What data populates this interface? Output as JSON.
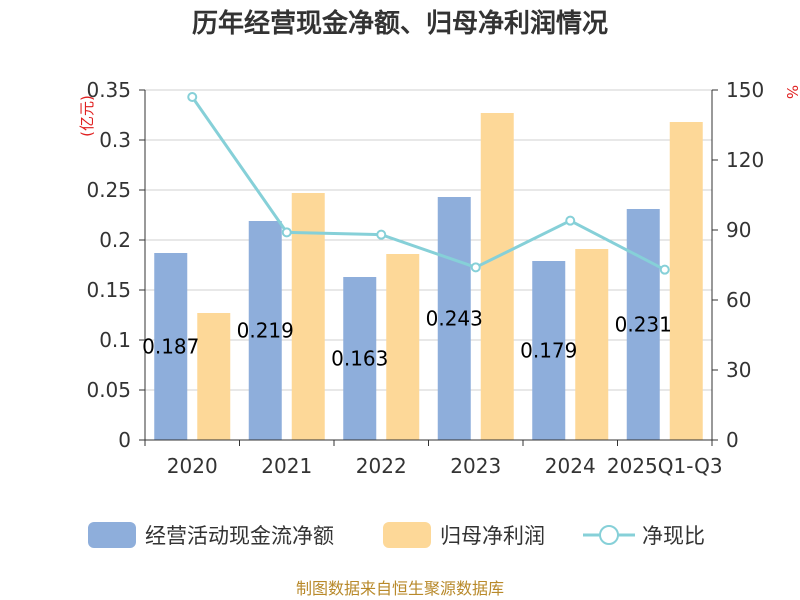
{
  "chart_data": {
    "type": "bar",
    "title": "历年经营现金净额、归母净利润情况",
    "left_unit": "(亿元)",
    "right_unit": "%",
    "categories": [
      "2020",
      "2021",
      "2022",
      "2023",
      "2024",
      "2025Q1-Q3"
    ],
    "series": [
      {
        "name": "经营活动现金流净额",
        "type": "bar",
        "axis": "left",
        "color": "#8eaedb",
        "values": [
          0.187,
          0.219,
          0.163,
          0.243,
          0.179,
          0.231
        ],
        "labels": [
          "0.187",
          "0.219",
          "0.163",
          "0.243",
          "0.179",
          "0.231"
        ]
      },
      {
        "name": "归母净利润",
        "type": "bar",
        "axis": "left",
        "color": "#fdd898",
        "values": [
          0.127,
          0.247,
          0.186,
          0.327,
          0.191,
          0.318
        ]
      },
      {
        "name": "净现比",
        "type": "line",
        "axis": "right",
        "color": "#86d0d8",
        "values": [
          147,
          89,
          88,
          74,
          94,
          73
        ]
      }
    ],
    "left_axis": {
      "min": 0,
      "max": 0.35,
      "ticks": [
        "0",
        "0.05",
        "0.1",
        "0.15",
        "0.2",
        "0.25",
        "0.3",
        "0.35"
      ]
    },
    "right_axis": {
      "min": 0,
      "max": 150,
      "ticks": [
        "0",
        "30",
        "60",
        "90",
        "120",
        "150"
      ]
    },
    "grid": true,
    "legend_position": "bottom"
  },
  "source": "制图数据来自恒生聚源数据库"
}
